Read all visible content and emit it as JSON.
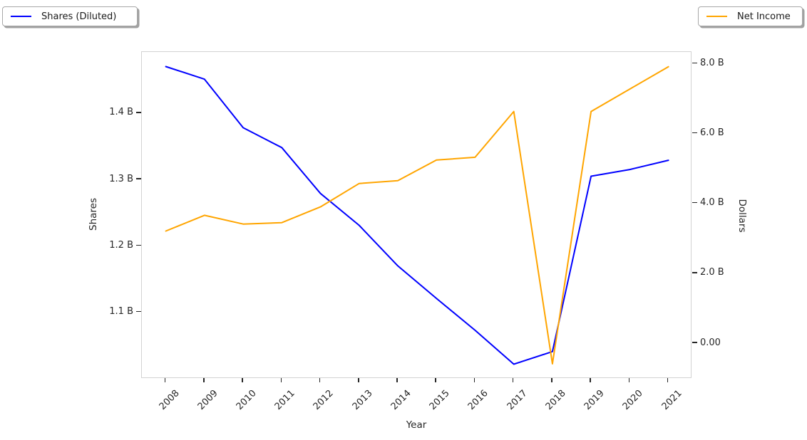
{
  "chart_data": {
    "type": "line",
    "title": "",
    "xlabel": "Year",
    "ylabel_left": "Shares",
    "ylabel_right": "Dollars",
    "x_labels": [
      "2008",
      "2009",
      "2010",
      "2011",
      "2012",
      "2013",
      "2014",
      "2015",
      "2016",
      "2017",
      "2018",
      "2019",
      "2020",
      "2021"
    ],
    "series": [
      {
        "name": "Shares (Diluted)",
        "axis": "left",
        "color": "#0000ff",
        "values": [
          1.47,
          1.451,
          1.378,
          1.348,
          1.279,
          1.231,
          1.17,
          1.121,
          1.073,
          1.022,
          1.041,
          1.305,
          1.315,
          1.329
        ]
      },
      {
        "name": "Net Income",
        "axis": "right",
        "color": "#ffa500",
        "values": [
          3.21,
          3.66,
          3.41,
          3.45,
          3.9,
          4.57,
          4.65,
          5.24,
          5.32,
          6.63,
          -0.59,
          6.63,
          7.27,
          7.91
        ]
      }
    ],
    "left_axis": {
      "unit": "B",
      "range": [
        1.0,
        1.492
      ],
      "ticks": [
        {
          "v": 1.1,
          "label": "1.1 B"
        },
        {
          "v": 1.2,
          "label": "1.2 B"
        },
        {
          "v": 1.3,
          "label": "1.3 B"
        },
        {
          "v": 1.4,
          "label": "1.4 B"
        }
      ]
    },
    "right_axis": {
      "unit": "B",
      "range": [
        -1.017,
        8.332
      ],
      "ticks": [
        {
          "v": 0,
          "label": "0.00"
        },
        {
          "v": 2,
          "label": "2.0 B"
        },
        {
          "v": 4,
          "label": "4.0 B"
        },
        {
          "v": 6,
          "label": "6.0 B"
        },
        {
          "v": 8,
          "label": "8.0 B"
        }
      ]
    },
    "legend": {
      "left_label": "Shares (Diluted)",
      "right_label": "Net Income"
    },
    "grid": false,
    "legend_position": "top-left and top-right, outside axes"
  }
}
